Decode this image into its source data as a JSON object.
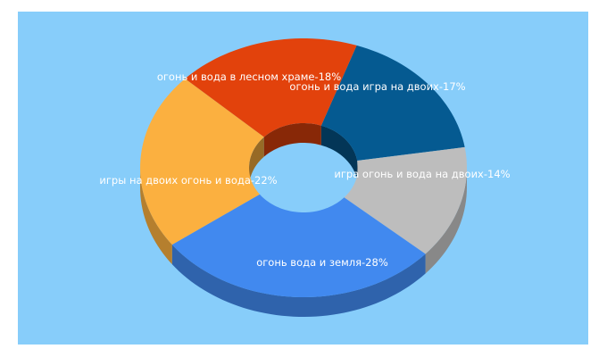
{
  "chart_data": {
    "type": "pie",
    "donut": true,
    "three_d": true,
    "background": "#87cdfa",
    "slices": [
      {
        "label": "огонь и вода игра на двоих",
        "value": 17,
        "color": "#055a91",
        "label_text": "огонь и вода игра на двоих-17%"
      },
      {
        "label": "игра огонь и вода на двоих",
        "value": 14,
        "color": "#bdbdbd",
        "label_text": "игра огонь и вода на двоих-14%"
      },
      {
        "label": "огонь вода и земля",
        "value": 28,
        "color": "#4189ef",
        "label_text": "огонь вода и земля-28%"
      },
      {
        "label": "игры на двоих огонь и вода",
        "value": 22,
        "color": "#fbb040",
        "label_text": "игры на двоих огонь и вода-22%"
      },
      {
        "label": "огонь и вода в лесном храме",
        "value": 18,
        "color": "#e2420c",
        "label_text": "огонь и вода в лесном храме-18%"
      }
    ]
  }
}
